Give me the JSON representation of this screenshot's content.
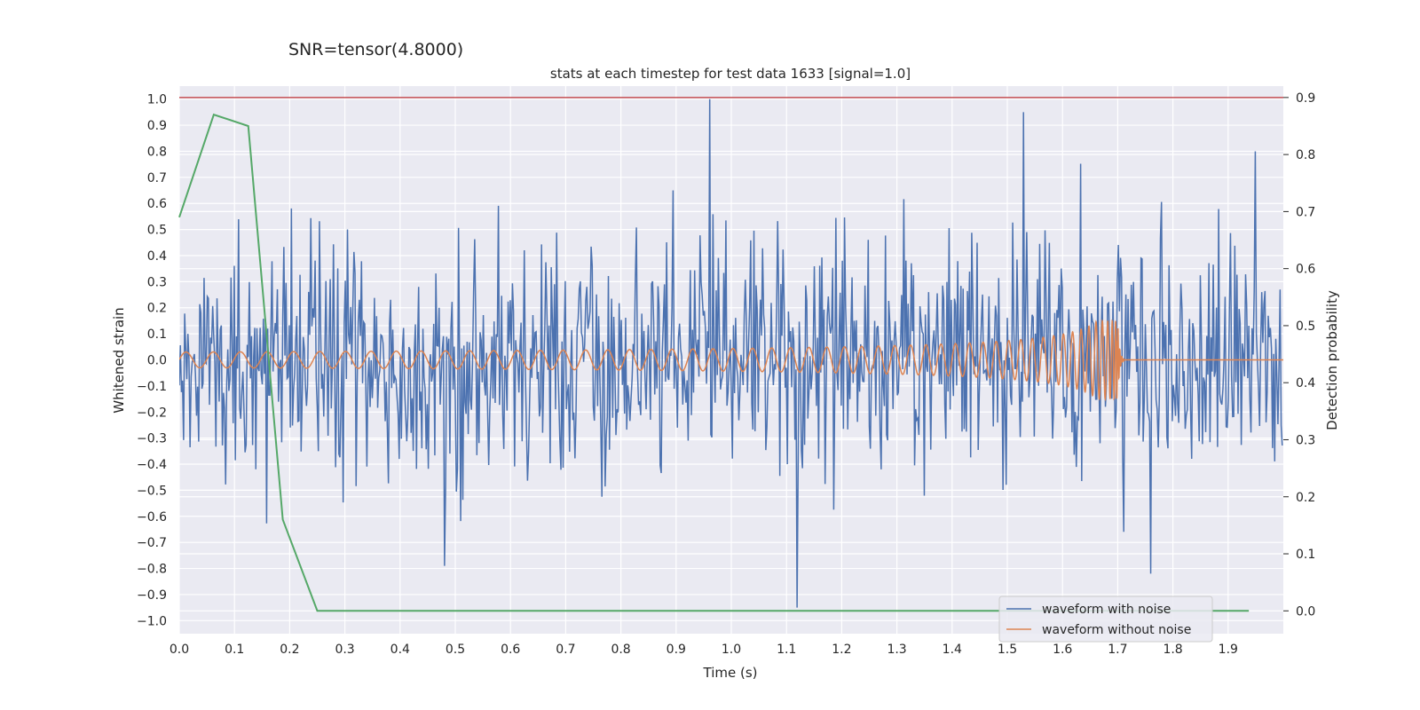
{
  "chart_data": {
    "type": "line",
    "suptitle": "SNR=tensor(4.8000)",
    "title": "stats at each timestep for test data 1633 [signal=1.0]",
    "xlabel": "Time (s)",
    "ylabel": "Whitened strain",
    "y2label": "Detection probability",
    "xlim": [
      0.0,
      2.0
    ],
    "ylim": [
      -1.05,
      1.05
    ],
    "y2lim": [
      -0.04,
      0.92
    ],
    "x_ticks": [
      "0.0",
      "0.1",
      "0.2",
      "0.3",
      "0.4",
      "0.5",
      "0.6",
      "0.7",
      "0.8",
      "0.9",
      "1.0",
      "1.1",
      "1.2",
      "1.3",
      "1.4",
      "1.5",
      "1.6",
      "1.7",
      "1.8",
      "1.9"
    ],
    "y_ticks": [
      "1.0",
      "0.9",
      "0.8",
      "0.7",
      "0.6",
      "0.5",
      "0.4",
      "0.3",
      "0.2",
      "0.1",
      "0.0",
      "−0.1",
      "−0.2",
      "−0.3",
      "−0.4",
      "−0.5",
      "−0.6",
      "−0.7",
      "−0.8",
      "−0.9",
      "−1.0"
    ],
    "y2_ticks": [
      "0.9",
      "0.8",
      "0.7",
      "0.6",
      "0.5",
      "0.4",
      "0.3",
      "0.2",
      "0.1",
      "0.0"
    ],
    "grid": true,
    "legend_position": "bottom-right",
    "threshold_line": {
      "value": 0.9,
      "axis": "y2",
      "color": "#c44e52"
    },
    "series": [
      {
        "name": "waveform with noise",
        "axis": "y",
        "color": "#4c72b0",
        "kind": "noise",
        "n_samples": 1024,
        "typical_range": [
          -0.5,
          0.55
        ],
        "notable_peaks": [
          {
            "x": 0.96,
            "y": 1.0
          },
          {
            "x": 1.12,
            "y": -0.95
          },
          {
            "x": 1.53,
            "y": 0.95
          },
          {
            "x": 1.95,
            "y": 0.8
          },
          {
            "x": 1.76,
            "y": -0.82
          },
          {
            "x": 0.48,
            "y": -0.79
          }
        ]
      },
      {
        "name": "waveform without noise",
        "axis": "y",
        "color": "#dd8452",
        "kind": "chirp",
        "merger_time": 1.7,
        "peak_amplitude": 0.15,
        "start_amplitude": 0.03
      },
      {
        "name": "detection probability",
        "axis": "y2",
        "color": "#55a868",
        "x": [
          0.0,
          0.0625,
          0.125,
          0.1875,
          0.25,
          1.9375
        ],
        "values": [
          0.69,
          0.87,
          0.85,
          0.16,
          0.0,
          0.0
        ]
      }
    ]
  }
}
